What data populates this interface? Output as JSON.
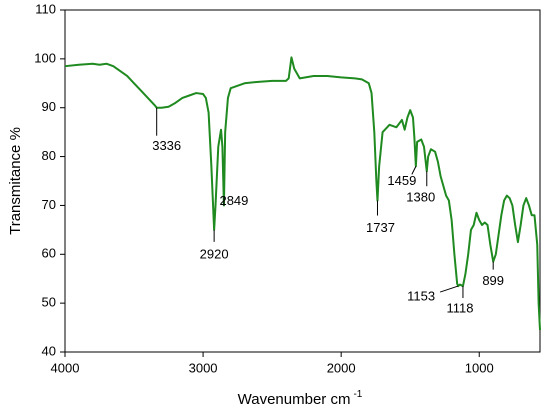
{
  "chart_data": {
    "type": "line",
    "xlabel": "Wavenumber cm",
    "xlabel_superscript": "-1",
    "ylabel": "Transmitance %",
    "xlim": [
      4000,
      560
    ],
    "ylim": [
      40,
      110
    ],
    "xticks": [
      4000,
      3000,
      2000,
      1000
    ],
    "yticks": [
      40,
      50,
      60,
      70,
      80,
      90,
      100,
      110
    ],
    "series": [
      {
        "color": "#1f8a1f",
        "x": [
          4000,
          3900,
          3800,
          3750,
          3700,
          3650,
          3600,
          3550,
          3500,
          3450,
          3400,
          3350,
          3336,
          3300,
          3250,
          3200,
          3150,
          3100,
          3050,
          3000,
          2980,
          2960,
          2940,
          2920,
          2910,
          2890,
          2870,
          2860,
          2849,
          2840,
          2820,
          2800,
          2700,
          2600,
          2500,
          2400,
          2380,
          2360,
          2340,
          2320,
          2300,
          2200,
          2100,
          2000,
          1900,
          1850,
          1800,
          1780,
          1760,
          1745,
          1737,
          1725,
          1700,
          1650,
          1600,
          1560,
          1540,
          1520,
          1500,
          1480,
          1470,
          1459,
          1450,
          1420,
          1400,
          1380,
          1370,
          1350,
          1320,
          1300,
          1280,
          1260,
          1240,
          1220,
          1200,
          1180,
          1160,
          1153,
          1140,
          1118,
          1100,
          1080,
          1060,
          1040,
          1020,
          1000,
          980,
          960,
          940,
          920,
          899,
          880,
          860,
          840,
          820,
          800,
          780,
          760,
          740,
          720,
          700,
          680,
          660,
          640,
          620,
          600,
          580,
          570,
          560
        ],
        "values": [
          98.5,
          98.8,
          99,
          98.8,
          99,
          98.5,
          97.5,
          96.5,
          95,
          93.5,
          92,
          90.5,
          90,
          90,
          90.2,
          91,
          92,
          92.5,
          93,
          92.8,
          92,
          89,
          78,
          65,
          70,
          82,
          85.5,
          82,
          70,
          85,
          92,
          94,
          95,
          95.3,
          95.5,
          95.5,
          96,
          100.3,
          98,
          97,
          96,
          96.5,
          96.5,
          96.2,
          96,
          95.8,
          95,
          93,
          85,
          75,
          71,
          78,
          85,
          86.5,
          86,
          87.5,
          85.5,
          88,
          89.5,
          88,
          84,
          78,
          83,
          83.5,
          82,
          77,
          80,
          81.5,
          81,
          79,
          76,
          74,
          72,
          71,
          67,
          60,
          54,
          53.5,
          53.8,
          53.5,
          56,
          60,
          65,
          66,
          68.5,
          67,
          66,
          66.5,
          66,
          62,
          58.5,
          60,
          64,
          68,
          71,
          72,
          71.5,
          70,
          66,
          62.5,
          66,
          70,
          71.5,
          70,
          68,
          68,
          62,
          50,
          44.5
        ]
      }
    ],
    "annotations": [
      {
        "x": 3336,
        "y": 90
      },
      {
        "x": 2920,
        "y": 65
      },
      {
        "x": 2849,
        "y": 70
      },
      {
        "x": 1737,
        "y": 71
      },
      {
        "x": 1459,
        "y": 78
      },
      {
        "x": 1380,
        "y": 77
      },
      {
        "x": 1153,
        "y": 53.5
      },
      {
        "x": 1118,
        "y": 53.5
      },
      {
        "x": 899,
        "y": 58.5
      }
    ]
  }
}
